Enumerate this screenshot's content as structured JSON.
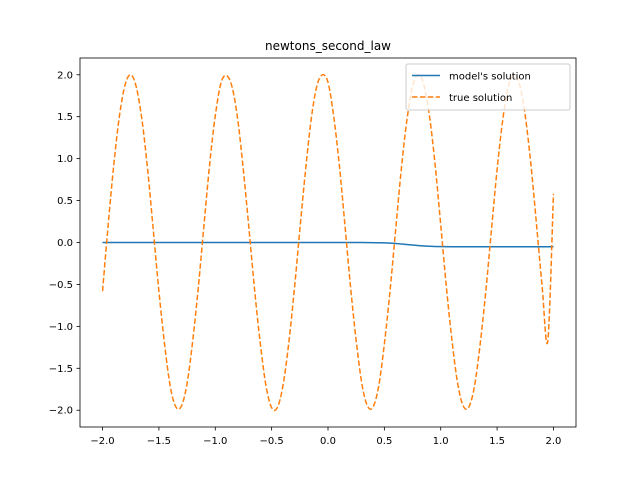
{
  "chart_data": {
    "type": "line",
    "title": "newtons_second_law",
    "xlabel": "",
    "ylabel": "",
    "xlim": [
      -2.2,
      2.2
    ],
    "ylim": [
      -2.2,
      2.2
    ],
    "xticks": [
      -2.0,
      -1.5,
      -1.0,
      -0.5,
      0.0,
      0.5,
      1.0,
      1.5,
      2.0
    ],
    "xtick_labels": [
      "−2.0",
      "−1.5",
      "−1.0",
      "−0.5",
      "0.0",
      "0.5",
      "1.0",
      "1.5",
      "2.0"
    ],
    "yticks": [
      -2.0,
      -1.5,
      -1.0,
      -0.5,
      0.0,
      0.5,
      1.0,
      1.5,
      2.0
    ],
    "ytick_labels": [
      "−2.0",
      "−1.5",
      "−1.0",
      "−0.5",
      "0.0",
      "0.5",
      "1.0",
      "1.5",
      "2.0"
    ],
    "grid": false,
    "legend_position": "top-right",
    "series": [
      {
        "name": "model's solution",
        "color": "#1f77b4",
        "style": "solid",
        "x": [
          -2.0,
          -1.5,
          -1.0,
          -0.5,
          0.0,
          0.3,
          0.45,
          0.55,
          0.65,
          0.75,
          0.85,
          0.95,
          1.1,
          1.5,
          2.0
        ],
        "y": [
          0.0,
          0.0,
          0.0,
          0.0,
          0.0,
          0.0,
          -0.003,
          -0.008,
          -0.018,
          -0.03,
          -0.042,
          -0.048,
          -0.05,
          -0.05,
          -0.05
        ]
      },
      {
        "name": "true solution",
        "color": "#ff7f0e",
        "style": "dashed",
        "x": [
          -2.0,
          -1.95,
          -1.9,
          -1.85,
          -1.8,
          -1.75,
          -1.7,
          -1.65,
          -1.6,
          -1.55,
          -1.5,
          -1.45,
          -1.4,
          -1.35,
          -1.3,
          -1.25,
          -1.2,
          -1.15,
          -1.1,
          -1.05,
          -1.0,
          -0.95,
          -0.9,
          -0.85,
          -0.8,
          -0.75,
          -0.7,
          -0.65,
          -0.6,
          -0.55,
          -0.5,
          -0.45,
          -0.4,
          -0.35,
          -0.3,
          -0.25,
          -0.2,
          -0.15,
          -0.1,
          -0.05,
          0.0,
          0.05,
          0.1,
          0.15,
          0.2,
          0.25,
          0.3,
          0.35,
          0.4,
          0.45,
          0.5,
          0.55,
          0.6,
          0.65,
          0.7,
          0.75,
          0.8,
          0.85,
          0.9,
          0.95,
          1.0,
          1.05,
          1.1,
          1.15,
          1.2,
          1.25,
          1.3,
          1.35,
          1.4,
          1.45,
          1.5,
          1.55,
          1.6,
          1.65,
          1.7,
          1.75,
          1.8,
          1.85,
          1.9,
          1.95,
          2.0
        ],
        "y": [
          -0.58,
          0.21,
          0.93,
          1.51,
          1.88,
          2.0,
          1.85,
          1.46,
          0.87,
          0.15,
          -0.58,
          -1.21,
          -1.71,
          -1.96,
          -1.95,
          -1.68,
          -1.17,
          -0.53,
          0.21,
          0.93,
          1.51,
          1.9,
          1.99,
          1.85,
          1.46,
          0.85,
          0.15,
          -0.58,
          -1.21,
          -1.71,
          -1.97,
          -1.97,
          -1.71,
          -1.22,
          -0.58,
          0.15,
          0.85,
          1.46,
          1.86,
          2.0,
          1.91,
          1.51,
          0.93,
          0.21,
          -0.53,
          -1.17,
          -1.68,
          -1.95,
          -1.96,
          -1.71,
          -1.21,
          -0.58,
          0.15,
          0.87,
          1.46,
          1.86,
          2.0,
          1.88,
          1.51,
          0.93,
          0.21,
          -0.53,
          -1.17,
          -1.68,
          -1.95,
          -1.96,
          -1.71,
          -1.21,
          -0.58,
          0.15,
          0.87,
          1.46,
          1.86,
          2.0,
          1.88,
          1.51,
          0.93,
          0.21,
          -0.53,
          -1.17,
          0.58
        ]
      }
    ]
  }
}
